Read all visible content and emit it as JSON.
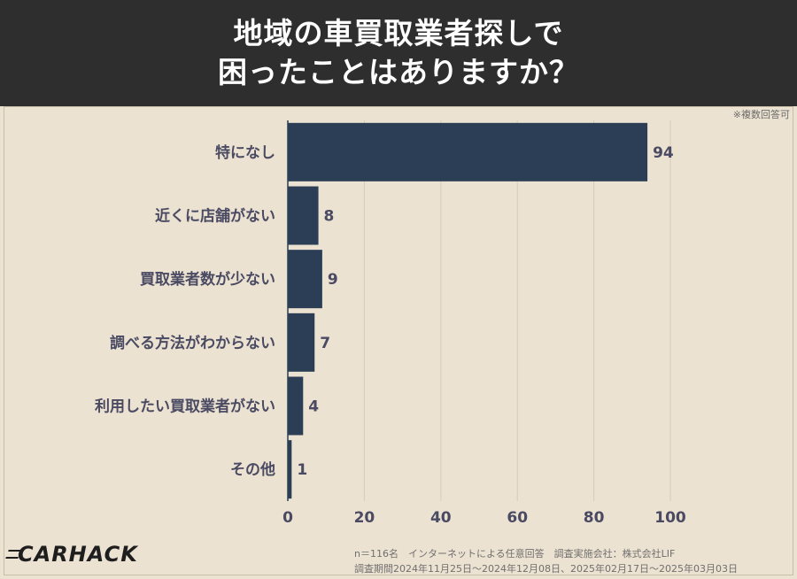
{
  "header": {
    "title_line1": "地域の車買取業者探しで",
    "title_line2": "困ったことはありますか？"
  },
  "note": "※複数回答可",
  "chart_data": {
    "type": "bar",
    "orientation": "horizontal",
    "categories": [
      "特になし",
      "近くに店舗がない",
      "買取業者数が少ない",
      "調べる方法がわからない",
      "利用したい買取業者がない",
      "その他"
    ],
    "values": [
      94,
      8,
      9,
      7,
      4,
      1
    ],
    "xlim": [
      0,
      100
    ],
    "xticks": [
      0,
      20,
      40,
      60,
      80,
      100
    ],
    "grid": true,
    "bar_color": "#2b3e55"
  },
  "footer": {
    "line1": "n＝116名　インターネットによる任意回答　調査実施会社：株式会社LIF",
    "line2": "調査期間2024年11月25日〜2024年12月08日、2025年02月17日〜2025年03月03日"
  },
  "logo": {
    "text": "CARHACK"
  }
}
